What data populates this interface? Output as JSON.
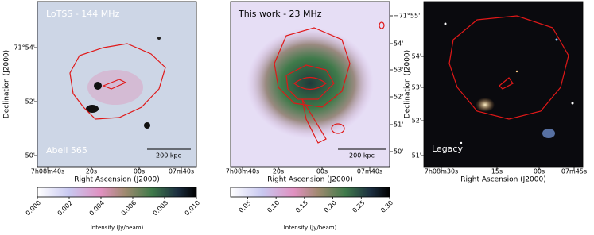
{
  "panels": [
    {
      "title": "LoTSS - 144 MHz",
      "label": "Abell 565",
      "scalebar": "200 kpc",
      "xlabel": "Right Ascension (J2000)",
      "ylabel": "Declination (J2000)",
      "xticks": [
        "7h08m40s",
        "20s",
        "00s",
        "07m40s"
      ],
      "yticks": [
        "71°54'",
        "52'",
        "50'"
      ]
    },
    {
      "title": "This work - 23 MHz",
      "scalebar": "200 kpc",
      "xlabel": "Right Ascension (J2000)",
      "xticks": [
        "7h08m40s",
        "20s",
        "00s",
        "07m40s"
      ],
      "yticks": [
        "−71°55'",
        "54'",
        "53'",
        "52'",
        "51'",
        "50'"
      ]
    },
    {
      "label": "Legacy",
      "xlabel": "Right Ascension (J2000)",
      "ylabel": "Declination (J2000)",
      "xticks": [
        "7h08m30s",
        "15s",
        "00s",
        "07m45s"
      ],
      "yticks": [
        "54'",
        "53'",
        "52'",
        "51'"
      ]
    }
  ],
  "colorbars": [
    {
      "label": "Intensity (Jy/beam)",
      "lim": [
        0,
        0.01
      ],
      "ticks": [
        {
          "value": 0,
          "label": "0.000"
        },
        0.002,
        0.004,
        0.006,
        0.008,
        {
          "value": 0.01,
          "label": "0.010"
        }
      ]
    },
    {
      "label": "Intensity (Jy/beam)",
      "lim": [
        0.02,
        0.3
      ],
      "ticks": [
        0.05,
        {
          "value": 0.1,
          "label": "0.10"
        },
        0.15,
        {
          "value": 0.2,
          "label": "0.20"
        },
        0.25,
        {
          "value": 0.3,
          "label": "0.30"
        }
      ]
    }
  ]
}
